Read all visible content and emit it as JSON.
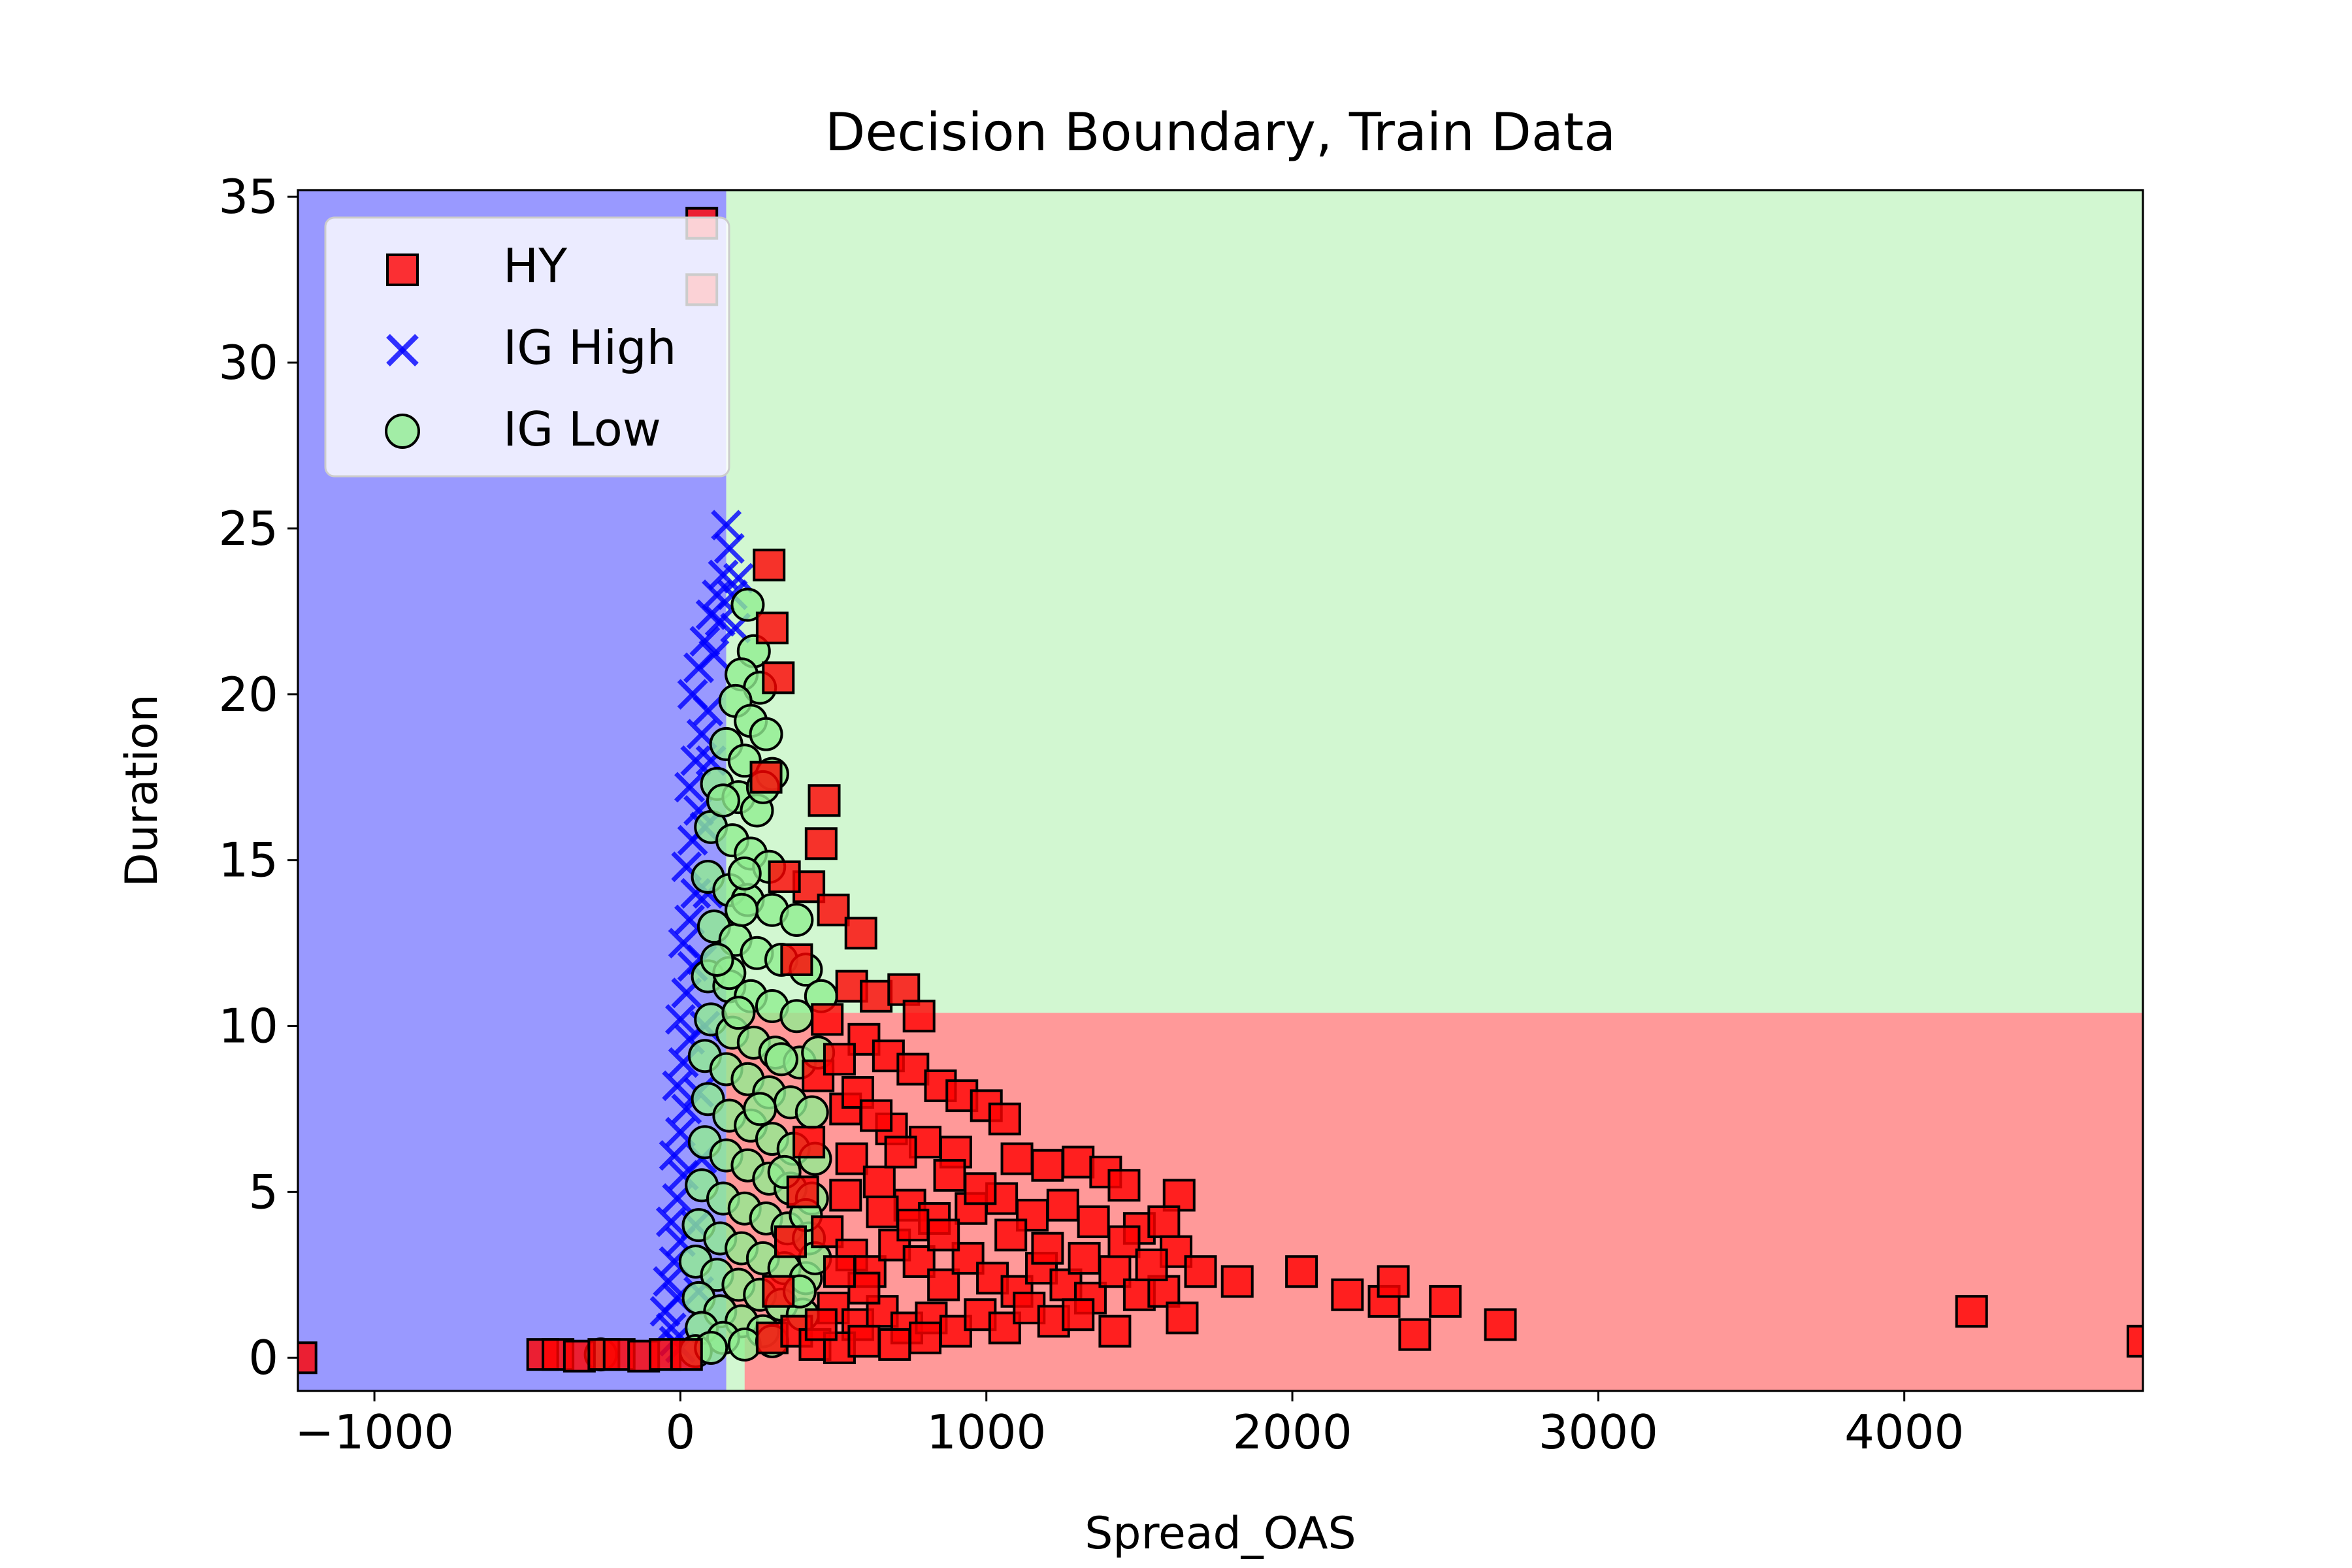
{
  "chart_data": {
    "type": "scatter",
    "title": "Decision Boundary, Train Data",
    "xlabel": "Spread_OAS",
    "ylabel": "Duration",
    "xlim": [
      -1250,
      4780
    ],
    "ylim": [
      -1,
      35.2
    ],
    "xticks": [
      -1000,
      0,
      1000,
      2000,
      3000,
      4000
    ],
    "xtick_labels": [
      "−1000",
      "0",
      "1000",
      "2000",
      "3000",
      "4000"
    ],
    "yticks": [
      0,
      5,
      10,
      15,
      20,
      25,
      30,
      35
    ],
    "ytick_labels": [
      "0",
      "5",
      "10",
      "15",
      "20",
      "25",
      "30",
      "35"
    ],
    "grid": false,
    "legend_position": "upper-left",
    "decision_regions": [
      {
        "class": "IG High",
        "x0": -1250,
        "x1": 150,
        "y0": -1,
        "y1": 35.2,
        "color": "#9999ff"
      },
      {
        "class": "IG Low",
        "x0": 150,
        "x1": 4780,
        "y0": 10.4,
        "y1": 35.2,
        "color": "#d2f7d1"
      },
      {
        "class": "HY",
        "x0": 150,
        "x1": 4780,
        "y0": -1,
        "y1": 10.4,
        "color": "#ff9999"
      },
      {
        "class": "IG Low",
        "x0": 150,
        "x1": 210,
        "y0": -1,
        "y1": 0.6,
        "color": "#d2f7d1"
      }
    ],
    "series": [
      {
        "name": "HY",
        "marker": "square",
        "color": "#ff0000",
        "edge": "#000000",
        "points": [
          [
            -1240,
            0
          ],
          [
            -450,
            0.1
          ],
          [
            -400,
            0.1
          ],
          [
            -330,
            0.05
          ],
          [
            -250,
            0.1
          ],
          [
            -200,
            0.1
          ],
          [
            -120,
            0.05
          ],
          [
            -50,
            0.1
          ],
          [
            20,
            0.1
          ],
          [
            70,
            34.2
          ],
          [
            70,
            32.2
          ],
          [
            290,
            23.9
          ],
          [
            300,
            22
          ],
          [
            320,
            20.5
          ],
          [
            470,
            16.8
          ],
          [
            460,
            15.5
          ],
          [
            420,
            14.2
          ],
          [
            500,
            13.5
          ],
          [
            590,
            12.8
          ],
          [
            560,
            11.2
          ],
          [
            640,
            10.9
          ],
          [
            730,
            11.1
          ],
          [
            780,
            10.3
          ],
          [
            600,
            9.6
          ],
          [
            680,
            9.1
          ],
          [
            760,
            8.7
          ],
          [
            850,
            8.2
          ],
          [
            920,
            7.9
          ],
          [
            1000,
            7.6
          ],
          [
            1060,
            7.2
          ],
          [
            540,
            7.5
          ],
          [
            690,
            6.9
          ],
          [
            800,
            6.5
          ],
          [
            900,
            6.2
          ],
          [
            1100,
            6.0
          ],
          [
            1200,
            5.8
          ],
          [
            1300,
            5.9
          ],
          [
            1390,
            5.6
          ],
          [
            1450,
            5.2
          ],
          [
            1630,
            4.9
          ],
          [
            560,
            6.0
          ],
          [
            650,
            5.3
          ],
          [
            750,
            4.6
          ],
          [
            830,
            4.2
          ],
          [
            950,
            4.5
          ],
          [
            1050,
            4.8
          ],
          [
            1150,
            4.3
          ],
          [
            1250,
            4.6
          ],
          [
            1350,
            4.1
          ],
          [
            1500,
            3.9
          ],
          [
            1580,
            4.1
          ],
          [
            1620,
            3.2
          ],
          [
            1700,
            2.6
          ],
          [
            1820,
            2.3
          ],
          [
            2030,
            2.6
          ],
          [
            2180,
            1.9
          ],
          [
            2300,
            1.7
          ],
          [
            2330,
            2.3
          ],
          [
            2400,
            0.7
          ],
          [
            2500,
            1.7
          ],
          [
            2680,
            1.0
          ],
          [
            4220,
            1.4
          ],
          [
            4780,
            0.5
          ],
          [
            480,
            3.8
          ],
          [
            560,
            3.1
          ],
          [
            620,
            2.6
          ],
          [
            700,
            3.4
          ],
          [
            780,
            2.9
          ],
          [
            860,
            2.2
          ],
          [
            940,
            3.0
          ],
          [
            1020,
            2.4
          ],
          [
            1100,
            2.0
          ],
          [
            1180,
            2.7
          ],
          [
            1260,
            2.2
          ],
          [
            1340,
            1.8
          ],
          [
            1420,
            2.6
          ],
          [
            1500,
            1.9
          ],
          [
            1580,
            2.0
          ],
          [
            1640,
            1.2
          ],
          [
            1420,
            0.8
          ],
          [
            500,
            1.5
          ],
          [
            580,
            1.0
          ],
          [
            660,
            1.4
          ],
          [
            740,
            0.9
          ],
          [
            820,
            1.2
          ],
          [
            900,
            0.8
          ],
          [
            980,
            1.3
          ],
          [
            1060,
            0.9
          ],
          [
            1140,
            1.5
          ],
          [
            1220,
            1.1
          ],
          [
            1300,
            1.3
          ],
          [
            300,
            0.6
          ],
          [
            380,
            0.8
          ],
          [
            440,
            0.4
          ],
          [
            520,
            0.3
          ],
          [
            600,
            0.5
          ],
          [
            700,
            0.4
          ],
          [
            800,
            0.6
          ],
          [
            320,
            2.0
          ],
          [
            360,
            3.5
          ],
          [
            400,
            5.0
          ],
          [
            420,
            6.5
          ],
          [
            450,
            8.5
          ],
          [
            480,
            10.2
          ],
          [
            380,
            12.0
          ],
          [
            340,
            14.5
          ],
          [
            280,
            17.5
          ],
          [
            520,
            9.0
          ],
          [
            580,
            8.0
          ],
          [
            640,
            7.3
          ],
          [
            720,
            6.2
          ],
          [
            880,
            5.5
          ],
          [
            980,
            5.1
          ],
          [
            1080,
            3.7
          ],
          [
            1200,
            3.3
          ],
          [
            1320,
            3.0
          ],
          [
            1450,
            3.5
          ],
          [
            1540,
            2.8
          ],
          [
            860,
            3.7
          ],
          [
            760,
            4.0
          ],
          [
            660,
            4.4
          ],
          [
            540,
            4.9
          ],
          [
            600,
            2.1
          ],
          [
            520,
            2.6
          ],
          [
            460,
            1.0
          ]
        ]
      },
      {
        "name": "IG High",
        "marker": "x",
        "color": "#0000ff",
        "points": [
          [
            150,
            25.1
          ],
          [
            160,
            24.4
          ],
          [
            140,
            23.6
          ],
          [
            120,
            23.0
          ],
          [
            100,
            22.4
          ],
          [
            80,
            21.6
          ],
          [
            60,
            20.8
          ],
          [
            40,
            20.0
          ],
          [
            110,
            21.2
          ],
          [
            130,
            22.2
          ],
          [
            90,
            19.5
          ],
          [
            70,
            18.8
          ],
          [
            50,
            18.0
          ],
          [
            30,
            17.2
          ],
          [
            60,
            16.5
          ],
          [
            40,
            15.6
          ],
          [
            20,
            14.8
          ],
          [
            50,
            14.0
          ],
          [
            30,
            13.2
          ],
          [
            10,
            12.5
          ],
          [
            40,
            11.8
          ],
          [
            20,
            11.0
          ],
          [
            0,
            10.2
          ],
          [
            30,
            9.6
          ],
          [
            10,
            8.9
          ],
          [
            -10,
            8.2
          ],
          [
            20,
            7.5
          ],
          [
            0,
            6.8
          ],
          [
            -20,
            6.1
          ],
          [
            10,
            5.5
          ],
          [
            -10,
            4.8
          ],
          [
            -30,
            4.1
          ],
          [
            0,
            3.5
          ],
          [
            -20,
            2.9
          ],
          [
            -40,
            2.3
          ],
          [
            -10,
            1.8
          ],
          [
            -50,
            1.4
          ],
          [
            -30,
            0.9
          ],
          [
            -20,
            0.5
          ],
          [
            0,
            0.3
          ],
          [
            60,
            2.0
          ],
          [
            50,
            4.0
          ],
          [
            70,
            6.0
          ],
          [
            60,
            8.0
          ],
          [
            80,
            10.0
          ],
          [
            70,
            12.0
          ],
          [
            90,
            14.0
          ],
          [
            80,
            16.0
          ],
          [
            100,
            18.0
          ],
          [
            170,
            23.0
          ],
          [
            180,
            22.0
          ],
          [
            190,
            23.5
          ]
        ]
      },
      {
        "name": "IG Low",
        "marker": "circle",
        "color": "#90ee90",
        "edge": "#000000",
        "points": [
          [
            220,
            22.7
          ],
          [
            240,
            21.3
          ],
          [
            200,
            20.6
          ],
          [
            260,
            20.2
          ],
          [
            180,
            19.8
          ],
          [
            230,
            19.2
          ],
          [
            280,
            18.8
          ],
          [
            150,
            18.5
          ],
          [
            210,
            18.0
          ],
          [
            300,
            17.6
          ],
          [
            120,
            17.3
          ],
          [
            190,
            16.9
          ],
          [
            250,
            16.5
          ],
          [
            100,
            16.0
          ],
          [
            170,
            15.6
          ],
          [
            230,
            15.2
          ],
          [
            290,
            14.8
          ],
          [
            90,
            14.5
          ],
          [
            160,
            14.1
          ],
          [
            220,
            13.8
          ],
          [
            300,
            13.5
          ],
          [
            380,
            13.2
          ],
          [
            110,
            13.0
          ],
          [
            180,
            12.6
          ],
          [
            250,
            12.2
          ],
          [
            330,
            12.0
          ],
          [
            410,
            11.7
          ],
          [
            90,
            11.5
          ],
          [
            160,
            11.2
          ],
          [
            230,
            10.9
          ],
          [
            300,
            10.6
          ],
          [
            380,
            10.3
          ],
          [
            460,
            10.9
          ],
          [
            100,
            10.2
          ],
          [
            170,
            9.8
          ],
          [
            240,
            9.5
          ],
          [
            310,
            9.2
          ],
          [
            390,
            8.9
          ],
          [
            450,
            9.2
          ],
          [
            80,
            9.1
          ],
          [
            150,
            8.7
          ],
          [
            220,
            8.4
          ],
          [
            290,
            8.0
          ],
          [
            360,
            7.7
          ],
          [
            430,
            7.4
          ],
          [
            90,
            7.8
          ],
          [
            160,
            7.3
          ],
          [
            230,
            7.0
          ],
          [
            300,
            6.6
          ],
          [
            370,
            6.3
          ],
          [
            440,
            6.0
          ],
          [
            80,
            6.5
          ],
          [
            150,
            6.1
          ],
          [
            220,
            5.8
          ],
          [
            290,
            5.4
          ],
          [
            360,
            5.1
          ],
          [
            430,
            4.8
          ],
          [
            70,
            5.2
          ],
          [
            140,
            4.8
          ],
          [
            210,
            4.5
          ],
          [
            280,
            4.2
          ],
          [
            350,
            3.9
          ],
          [
            420,
            3.6
          ],
          [
            60,
            4.0
          ],
          [
            130,
            3.6
          ],
          [
            200,
            3.3
          ],
          [
            270,
            3.0
          ],
          [
            340,
            2.7
          ],
          [
            410,
            2.4
          ],
          [
            50,
            2.9
          ],
          [
            120,
            2.5
          ],
          [
            190,
            2.2
          ],
          [
            260,
            1.9
          ],
          [
            330,
            1.6
          ],
          [
            400,
            1.3
          ],
          [
            60,
            1.8
          ],
          [
            130,
            1.4
          ],
          [
            200,
            1.1
          ],
          [
            270,
            0.8
          ],
          [
            70,
            0.9
          ],
          [
            140,
            0.6
          ],
          [
            210,
            0.4
          ],
          [
            -260,
            0.1
          ],
          [
            50,
            0.2
          ],
          [
            100,
            0.3
          ],
          [
            160,
            11.6
          ],
          [
            200,
            13.5
          ],
          [
            140,
            16.8
          ],
          [
            270,
            17.2
          ],
          [
            210,
            14.6
          ],
          [
            120,
            12.0
          ],
          [
            190,
            10.4
          ],
          [
            330,
            9.0
          ],
          [
            260,
            7.5
          ],
          [
            340,
            5.6
          ],
          [
            410,
            4.3
          ],
          [
            440,
            3.0
          ],
          [
            390,
            2.0
          ],
          [
            300,
            0.5
          ]
        ]
      }
    ]
  }
}
